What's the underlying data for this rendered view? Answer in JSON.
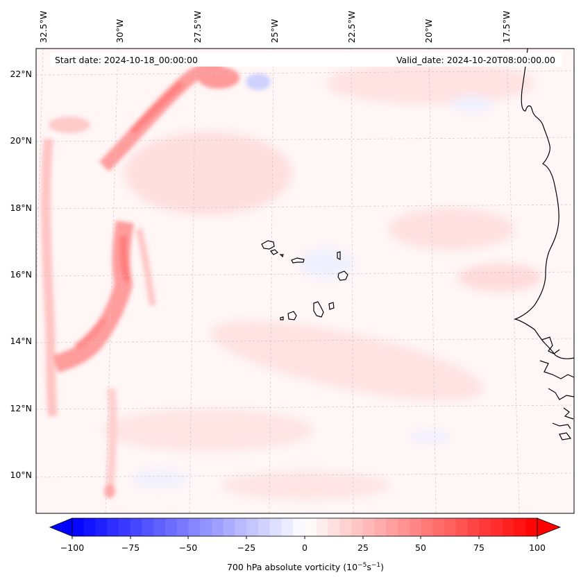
{
  "map": {
    "header": {
      "start_date": "Start date: 2024-10-18_00:00:00",
      "valid_date": "Valid_date: 2024-10-20T08:00:00.00"
    },
    "lon_labels": [
      "32.5°W",
      "30°W",
      "27.5°W",
      "25°W",
      "22.5°W",
      "20°W",
      "17.5°W"
    ],
    "lat_labels": [
      "22°N",
      "20°N",
      "18°N",
      "16°N",
      "14°N",
      "12°N",
      "10°N"
    ],
    "colorbar": {
      "ticks": [
        "−100",
        "−75",
        "−50",
        "−25",
        "0",
        "25",
        "50",
        "75",
        "100"
      ],
      "min": -100,
      "max": 100,
      "colormap": "bwr",
      "low_color": "#0000ff",
      "mid_color": "#ffffff",
      "high_color": "#ff0000",
      "label_text": "700 hPa absolute vorticity (10",
      "label_exp1": "−5",
      "label_mid": "s",
      "label_exp2": "−1",
      "label_end": ")"
    }
  }
}
